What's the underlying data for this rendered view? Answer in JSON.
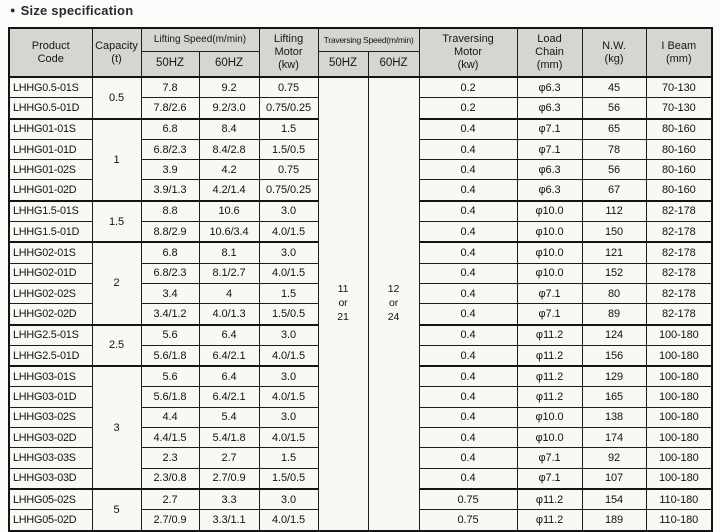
{
  "page": {
    "bullet": "●",
    "title": "Size specification"
  },
  "colors": {
    "header_bg": "#d6d6d1",
    "cell_bg": "#f8f8f5",
    "border": "#1c1c1c"
  },
  "table": {
    "headers": {
      "product_code": "Product\nCode",
      "capacity": "Capacity\n(t)",
      "lifting_speed": "Lifting Speed(m/min)",
      "lifting_hz50": "50HZ",
      "lifting_hz60": "60HZ",
      "lifting_motor": "Lifting\nMotor\n(kw)",
      "traversing_speed": "Traversing Speed(m/min)",
      "traversing_hz50": "50HZ",
      "traversing_hz60": "60HZ",
      "traversing_motor": "Traversing\nMotor\n(kw)",
      "load_chain": "Load\nChain\n(mm)",
      "nw": "N.W.\n(kg)",
      "ibeam": "I Beam\n(mm)"
    },
    "capacity_groups": [
      {
        "label": "0.5",
        "span": 2
      },
      {
        "label": "1",
        "span": 4
      },
      {
        "label": "1.5",
        "span": 2
      },
      {
        "label": "2",
        "span": 4
      },
      {
        "label": "2.5",
        "span": 2
      },
      {
        "label": "3",
        "span": 6
      },
      {
        "label": "5",
        "span": 2
      }
    ],
    "group_start_rows": [
      0,
      2,
      6,
      8,
      12,
      14,
      20
    ],
    "traversing_speed": {
      "hz50": "11\nor\n21",
      "hz60": "12\nor\n24"
    },
    "rows": [
      {
        "code": "LHHG0.5-01S",
        "l50": "7.8",
        "l60": "9.2",
        "lmotor": "0.75",
        "tmotor": "0.2",
        "chain": "φ6.3",
        "nw": "45",
        "ibeam": "70-130"
      },
      {
        "code": "LHHG0.5-01D",
        "l50": "7.8/2.6",
        "l60": "9.2/3.0",
        "lmotor": "0.75/0.25",
        "tmotor": "0.2",
        "chain": "φ6.3",
        "nw": "56",
        "ibeam": "70-130"
      },
      {
        "code": "LHHG01-01S",
        "l50": "6.8",
        "l60": "8.4",
        "lmotor": "1.5",
        "tmotor": "0.4",
        "chain": "φ7.1",
        "nw": "65",
        "ibeam": "80-160"
      },
      {
        "code": "LHHG01-01D",
        "l50": "6.8/2.3",
        "l60": "8.4/2.8",
        "lmotor": "1.5/0.5",
        "tmotor": "0.4",
        "chain": "φ7.1",
        "nw": "78",
        "ibeam": "80-160"
      },
      {
        "code": "LHHG01-02S",
        "l50": "3.9",
        "l60": "4.2",
        "lmotor": "0.75",
        "tmotor": "0.4",
        "chain": "φ6.3",
        "nw": "56",
        "ibeam": "80-160"
      },
      {
        "code": "LHHG01-02D",
        "l50": "3.9/1.3",
        "l60": "4.2/1.4",
        "lmotor": "0.75/0.25",
        "tmotor": "0.4",
        "chain": "φ6.3",
        "nw": "67",
        "ibeam": "80-160"
      },
      {
        "code": "LHHG1.5-01S",
        "l50": "8.8",
        "l60": "10.6",
        "lmotor": "3.0",
        "tmotor": "0.4",
        "chain": "φ10.0",
        "nw": "112",
        "ibeam": "82-178"
      },
      {
        "code": "LHHG1.5-01D",
        "l50": "8.8/2.9",
        "l60": "10.6/3.4",
        "lmotor": "4.0/1.5",
        "tmotor": "0.4",
        "chain": "φ10.0",
        "nw": "150",
        "ibeam": "82-178"
      },
      {
        "code": "LHHG02-01S",
        "l50": "6.8",
        "l60": "8.1",
        "lmotor": "3.0",
        "tmotor": "0.4",
        "chain": "φ10.0",
        "nw": "121",
        "ibeam": "82-178"
      },
      {
        "code": "LHHG02-01D",
        "l50": "6.8/2.3",
        "l60": "8.1/2.7",
        "lmotor": "4.0/1.5",
        "tmotor": "0.4",
        "chain": "φ10.0",
        "nw": "152",
        "ibeam": "82-178"
      },
      {
        "code": "LHHG02-02S",
        "l50": "3.4",
        "l60": "4",
        "lmotor": "1.5",
        "tmotor": "0.4",
        "chain": "φ7.1",
        "nw": "80",
        "ibeam": "82-178"
      },
      {
        "code": "LHHG02-02D",
        "l50": "3.4/1.2",
        "l60": "4.0/1.3",
        "lmotor": "1.5/0.5",
        "tmotor": "0.4",
        "chain": "φ7.1",
        "nw": "89",
        "ibeam": "82-178"
      },
      {
        "code": "LHHG2.5-01S",
        "l50": "5.6",
        "l60": "6.4",
        "lmotor": "3.0",
        "tmotor": "0.4",
        "chain": "φ11.2",
        "nw": "124",
        "ibeam": "100-180"
      },
      {
        "code": "LHHG2.5-01D",
        "l50": "5.6/1.8",
        "l60": "6.4/2.1",
        "lmotor": "4.0/1.5",
        "tmotor": "0.4",
        "chain": "φ11.2",
        "nw": "156",
        "ibeam": "100-180"
      },
      {
        "code": "LHHG03-01S",
        "l50": "5.6",
        "l60": "6.4",
        "lmotor": "3.0",
        "tmotor": "0.4",
        "chain": "φ11.2",
        "nw": "129",
        "ibeam": "100-180"
      },
      {
        "code": "LHHG03-01D",
        "l50": "5.6/1.8",
        "l60": "6.4/2.1",
        "lmotor": "4.0/1.5",
        "tmotor": "0.4",
        "chain": "φ11.2",
        "nw": "165",
        "ibeam": "100-180"
      },
      {
        "code": "LHHG03-02S",
        "l50": "4.4",
        "l60": "5.4",
        "lmotor": "3.0",
        "tmotor": "0.4",
        "chain": "φ10.0",
        "nw": "138",
        "ibeam": "100-180"
      },
      {
        "code": "LHHG03-02D",
        "l50": "4.4/1.5",
        "l60": "5.4/1.8",
        "lmotor": "4.0/1.5",
        "tmotor": "0.4",
        "chain": "φ10.0",
        "nw": "174",
        "ibeam": "100-180"
      },
      {
        "code": "LHHG03-03S",
        "l50": "2.3",
        "l60": "2.7",
        "lmotor": "1.5",
        "tmotor": "0.4",
        "chain": "φ7.1",
        "nw": "92",
        "ibeam": "100-180"
      },
      {
        "code": "LHHG03-03D",
        "l50": "2.3/0.8",
        "l60": "2.7/0.9",
        "lmotor": "1.5/0.5",
        "tmotor": "0.4",
        "chain": "φ7.1",
        "nw": "107",
        "ibeam": "100-180"
      },
      {
        "code": "LHHG05-02S",
        "l50": "2.7",
        "l60": "3.3",
        "lmotor": "3.0",
        "tmotor": "0.75",
        "chain": "φ11.2",
        "nw": "154",
        "ibeam": "110-180"
      },
      {
        "code": "LHHG05-02D",
        "l50": "2.7/0.9",
        "l60": "3.3/1.1",
        "lmotor": "4.0/1.5",
        "tmotor": "0.75",
        "chain": "φ11.2",
        "nw": "189",
        "ibeam": "110-180"
      }
    ]
  }
}
